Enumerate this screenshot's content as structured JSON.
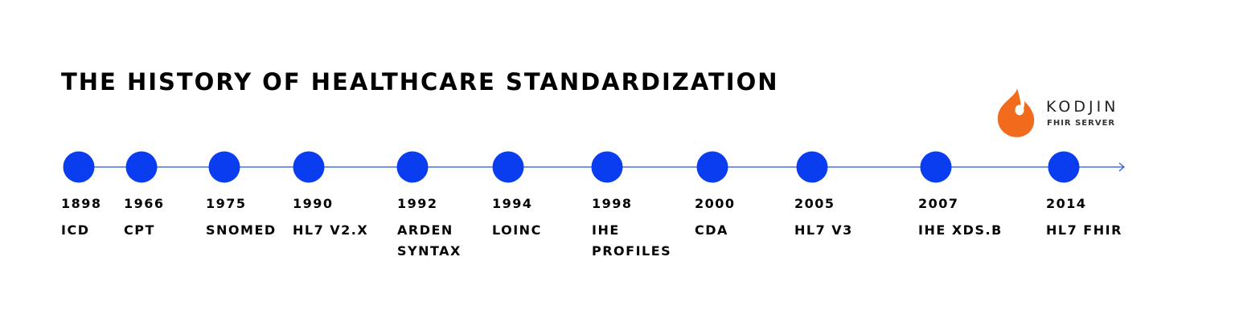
{
  "title": "THE HISTORY OF HEALTHCARE STANDARDIZATION",
  "logo": {
    "brand": "KODJIN",
    "subtitle": "FHIR SERVER",
    "icon": "flame-icon",
    "flame_color": "#F26A1B"
  },
  "colors": {
    "accent": "#0A3CF0",
    "line": "#2A52E8"
  },
  "events": [
    {
      "year": "1898",
      "name": "ICD"
    },
    {
      "year": "1966",
      "name": "CPT"
    },
    {
      "year": "1975",
      "name": "SNOMED"
    },
    {
      "year": "1990",
      "name": "HL7 V2.X"
    },
    {
      "year": "1992",
      "name": "ARDEN\nSYNTAX"
    },
    {
      "year": "1994",
      "name": "LOINC"
    },
    {
      "year": "1998",
      "name": "IHE\nPROFILES"
    },
    {
      "year": "2000",
      "name": "CDA"
    },
    {
      "year": "2005",
      "name": "HL7 V3"
    },
    {
      "year": "2007",
      "name": "IHE XDS.B"
    },
    {
      "year": "2014",
      "name": "HL7 FHIR"
    }
  ]
}
